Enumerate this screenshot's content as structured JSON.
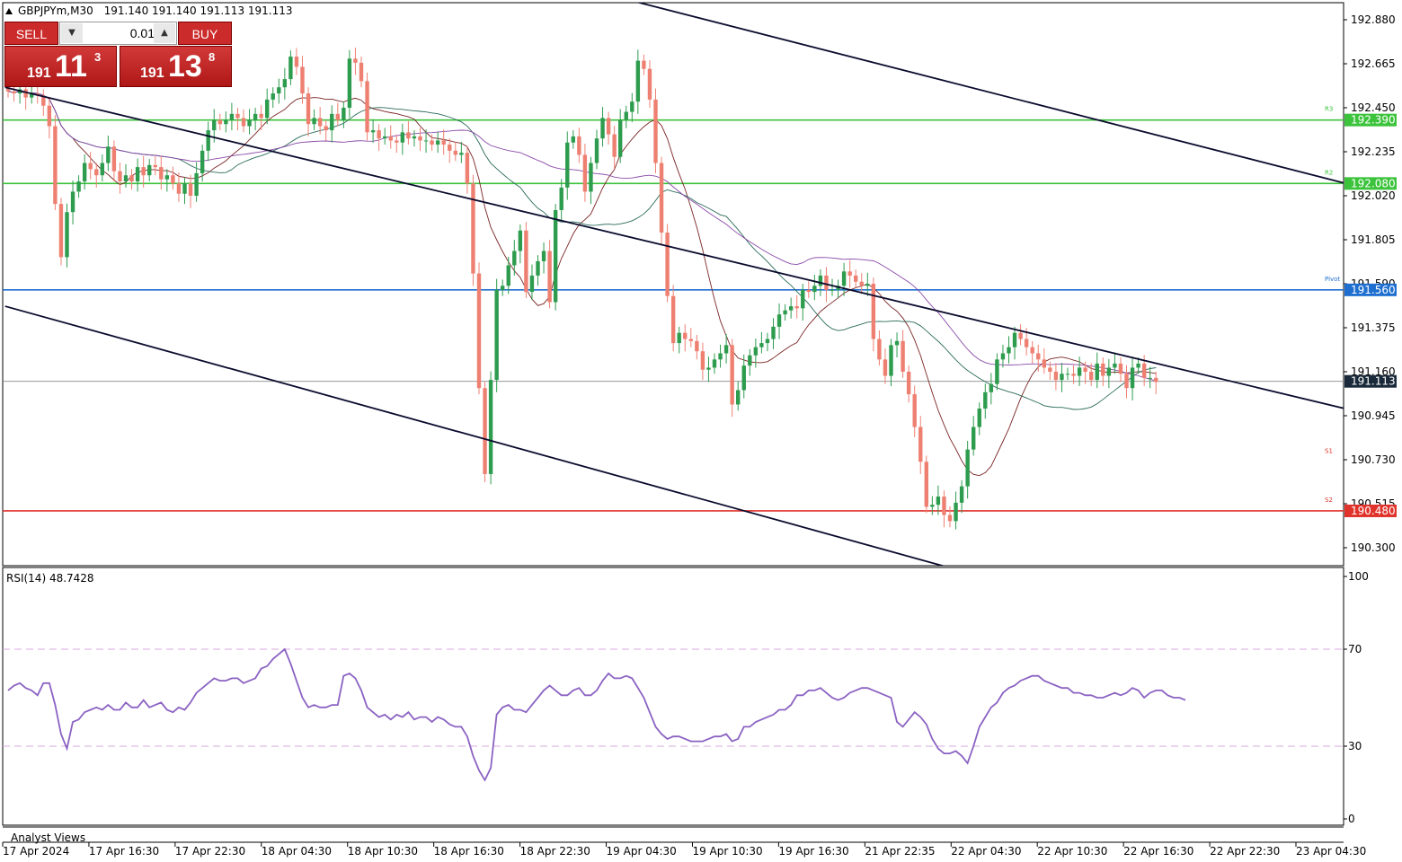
{
  "header": {
    "symbol": "GBPJPYm,M30",
    "ohlc": "191.140 191.140 191.113 191.113"
  },
  "trade_panel": {
    "sell_label": "SELL",
    "buy_label": "BUY",
    "lot_value": "0.01",
    "sell_price_small": "191",
    "sell_price_big": "11",
    "sell_price_sup": "3",
    "buy_price_small": "191",
    "buy_price_big": "13",
    "buy_price_sup": "8"
  },
  "rsi_panel": {
    "label": "RSI(14) 48.7428"
  },
  "bottom_label": "Analyst Views",
  "colors": {
    "bull": "#2e9c4e",
    "bear": "#ee8072",
    "green_level": "#3cc33c",
    "blue_level": "#1e6fd0",
    "red_level": "#e0332b",
    "trendline": "#0b0b2e",
    "rsi_line": "#8b62c2",
    "ma_fast": "#7a2424",
    "ma_mid": "#2a6a5a",
    "ma_slow": "#8a4aa8"
  },
  "chart_data": [
    {
      "type": "candlestick",
      "symbol": "GBPJPYm",
      "timeframe": "M30",
      "ylim": [
        190.2,
        192.98
      ],
      "y_ticks": [
        "192.880",
        "192.665",
        "192.450",
        "192.235",
        "192.020",
        "191.805",
        "191.590",
        "191.375",
        "191.160",
        "190.945",
        "190.730",
        "190.515",
        "190.300"
      ],
      "x_ticks": [
        "17 Apr 2024",
        "17 Apr 16:30",
        "17 Apr 22:30",
        "18 Apr 04:30",
        "18 Apr 10:30",
        "18 Apr 16:30",
        "18 Apr 22:30",
        "19 Apr 04:30",
        "19 Apr 10:30",
        "19 Apr 16:30",
        "21 Apr 22:35",
        "22 Apr 04:30",
        "22 Apr 10:30",
        "22 Apr 16:30",
        "22 Apr 22:30",
        "23 Apr 04:30"
      ],
      "levels": [
        {
          "name": "R3",
          "price": 192.39,
          "label": "192.390",
          "color": "#3cc33c"
        },
        {
          "name": "R2",
          "price": 192.08,
          "label": "192.080",
          "color": "#3cc33c"
        },
        {
          "name": "Pivot",
          "price": 191.56,
          "label": "191.560",
          "color": "#1e6fd0"
        },
        {
          "name": "S1",
          "price": 190.72,
          "label": "",
          "color": "#e0332b"
        },
        {
          "name": "S2",
          "price": 190.48,
          "label": "190.480",
          "color": "#e0332b"
        }
      ],
      "current_price": {
        "price": 191.113,
        "label": "191.113"
      },
      "closes": [
        192.53,
        192.52,
        192.54,
        192.5,
        192.52,
        192.51,
        192.46,
        192.36,
        191.98,
        191.72,
        191.94,
        192.04,
        192.09,
        192.18,
        192.15,
        192.12,
        192.18,
        192.26,
        192.14,
        192.09,
        192.12,
        192.09,
        192.16,
        192.12,
        192.17,
        192.16,
        192.1,
        192.12,
        192.08,
        192.03,
        192.08,
        192.02,
        192.13,
        192.24,
        192.34,
        192.39,
        192.37,
        192.39,
        192.42,
        192.4,
        192.36,
        192.39,
        192.42,
        192.4,
        192.49,
        192.52,
        192.55,
        192.59,
        192.7,
        192.65,
        192.52,
        192.37,
        192.4,
        192.36,
        192.34,
        192.42,
        192.39,
        192.45,
        192.69,
        192.67,
        192.58,
        192.33,
        192.34,
        192.3,
        192.31,
        192.29,
        192.28,
        192.33,
        192.3,
        192.31,
        192.29,
        192.29,
        192.27,
        192.29,
        192.27,
        192.24,
        192.22,
        192.23,
        192.08,
        191.64,
        191.08,
        190.66,
        191.12,
        191.56,
        191.58,
        191.68,
        191.75,
        191.85,
        191.55,
        191.63,
        191.7,
        191.75,
        191.5,
        191.95,
        192.06,
        192.28,
        192.31,
        192.22,
        192.04,
        192.18,
        192.3,
        192.4,
        192.32,
        192.21,
        192.39,
        192.43,
        192.48,
        192.68,
        192.64,
        192.49,
        192.18,
        191.84,
        191.53,
        191.3,
        191.35,
        191.32,
        191.31,
        191.26,
        191.17,
        191.18,
        191.22,
        191.25,
        191.29,
        191.0,
        191.07,
        191.19,
        191.24,
        191.28,
        191.3,
        191.32,
        191.38,
        191.44,
        191.46,
        191.48,
        191.47,
        191.56,
        191.55,
        191.58,
        191.63,
        191.56,
        191.56,
        191.58,
        191.65,
        191.63,
        191.6,
        191.58,
        191.59,
        191.32,
        191.22,
        191.14,
        191.29,
        191.31,
        191.16,
        191.05,
        190.89,
        190.72,
        190.5,
        190.51,
        190.55,
        190.46,
        190.43,
        190.52,
        190.6,
        190.78,
        190.89,
        190.98,
        191.06,
        191.1,
        191.22,
        191.25,
        191.28,
        191.35,
        191.32,
        191.28,
        191.25,
        191.22,
        191.18,
        191.16,
        191.12,
        191.15,
        191.15,
        191.14,
        191.18,
        191.16,
        191.12,
        191.2,
        191.14,
        191.18,
        191.2,
        191.15,
        191.08,
        191.18,
        191.2,
        191.13,
        191.13,
        191.11
      ],
      "series": [
        {
          "name": "RSI(14)",
          "ylim": [
            0,
            100
          ],
          "y_ticks": [
            "100",
            "70",
            "30",
            "0"
          ],
          "levels": [
            70,
            30
          ],
          "values": [
            53,
            55,
            56,
            54,
            53,
            51,
            56,
            56,
            47,
            35,
            29,
            40,
            41,
            44,
            45,
            46,
            45,
            47,
            45,
            45,
            48,
            46,
            46,
            49,
            46,
            47,
            48,
            45,
            44,
            46,
            45,
            48,
            52,
            54,
            56,
            58,
            57,
            57,
            58,
            58,
            56,
            57,
            58,
            62,
            63,
            66,
            68,
            70,
            64,
            57,
            50,
            46,
            47,
            46,
            46,
            47,
            47,
            59,
            60,
            58,
            53,
            46,
            44,
            42,
            43,
            41,
            43,
            42,
            44,
            41,
            42,
            42,
            40,
            42,
            41,
            39,
            38,
            38,
            34,
            26,
            20,
            16,
            21,
            43,
            46,
            47,
            45,
            45,
            44,
            47,
            50,
            53,
            55,
            53,
            51,
            51,
            53,
            54,
            51,
            51,
            53,
            57,
            60,
            58,
            58,
            59,
            58,
            54,
            50,
            44,
            38,
            35,
            33,
            34,
            34,
            33,
            32,
            32,
            32,
            33,
            34,
            34,
            35,
            32,
            33,
            38,
            38,
            40,
            41,
            42,
            43,
            45,
            45,
            47,
            51,
            51,
            53,
            53,
            54,
            52,
            50,
            49,
            50,
            52,
            53,
            54,
            54,
            53,
            52,
            51,
            50,
            40,
            38,
            41,
            44,
            42,
            39,
            33,
            29,
            27,
            27,
            28,
            26,
            23,
            30,
            38,
            42,
            46,
            48,
            52,
            54,
            55,
            57,
            58,
            59,
            59,
            57,
            56,
            55,
            54,
            54,
            52,
            52,
            51,
            51,
            50,
            50,
            51,
            52,
            51,
            52,
            54,
            53,
            50,
            52,
            53,
            53,
            51,
            50,
            50,
            49
          ]
        }
      ]
    }
  ]
}
